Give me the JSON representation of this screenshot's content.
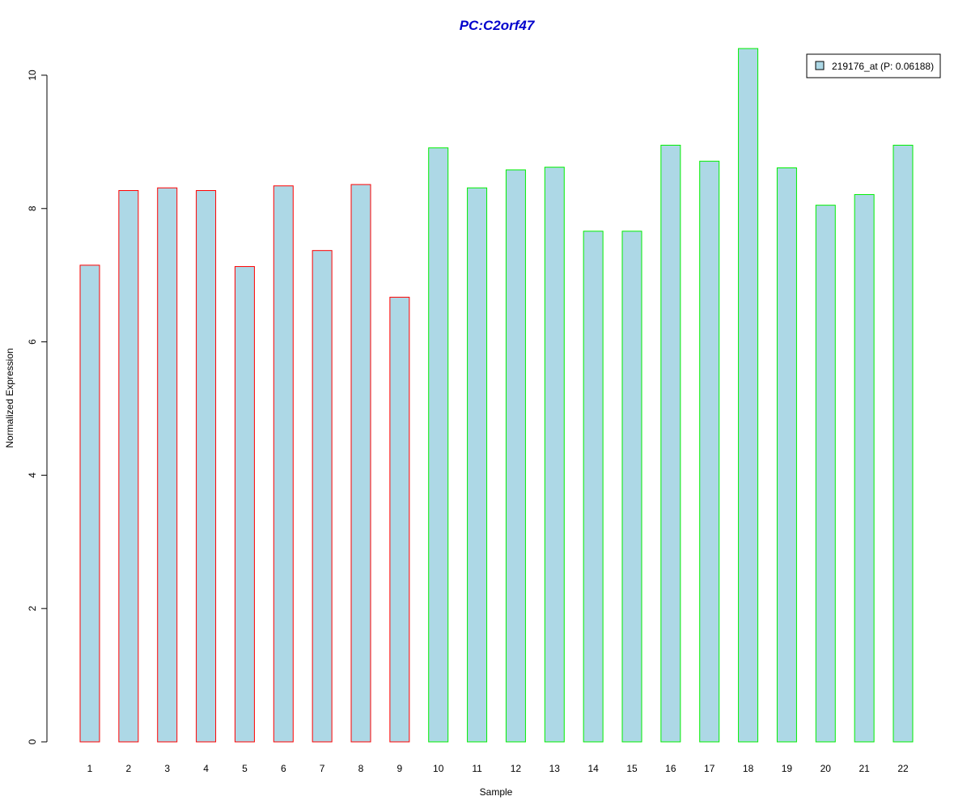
{
  "chart_data": {
    "type": "bar",
    "title": "PC:C2orf47",
    "xlabel": "Sample",
    "ylabel": "Normalized Expression",
    "categories": [
      "1",
      "2",
      "3",
      "4",
      "5",
      "6",
      "7",
      "8",
      "9",
      "10",
      "11",
      "12",
      "13",
      "14",
      "15",
      "16",
      "17",
      "18",
      "19",
      "20",
      "21",
      "22"
    ],
    "values": [
      7.15,
      8.27,
      8.31,
      8.27,
      7.13,
      8.34,
      7.37,
      8.36,
      6.67,
      8.91,
      8.31,
      8.58,
      8.62,
      7.66,
      7.66,
      8.95,
      8.71,
      10.4,
      8.61,
      8.05,
      8.21,
      8.95
    ],
    "group": [
      "a",
      "a",
      "a",
      "a",
      "a",
      "a",
      "a",
      "a",
      "a",
      "b",
      "b",
      "b",
      "b",
      "b",
      "b",
      "b",
      "b",
      "b",
      "b",
      "b",
      "b",
      "b"
    ],
    "ylim": [
      0,
      10.4
    ],
    "yticks": [
      0,
      2,
      4,
      6,
      8,
      10
    ],
    "grid": false,
    "legend": {
      "label": "219176_at (P: 0.06188)",
      "position": "top-right"
    },
    "colors": {
      "title": "#0000cc",
      "bar_fill": "#add8e6",
      "border_group_a": "#ff0000",
      "border_group_b": "#00ee00",
      "legend_border": "#000000"
    }
  }
}
